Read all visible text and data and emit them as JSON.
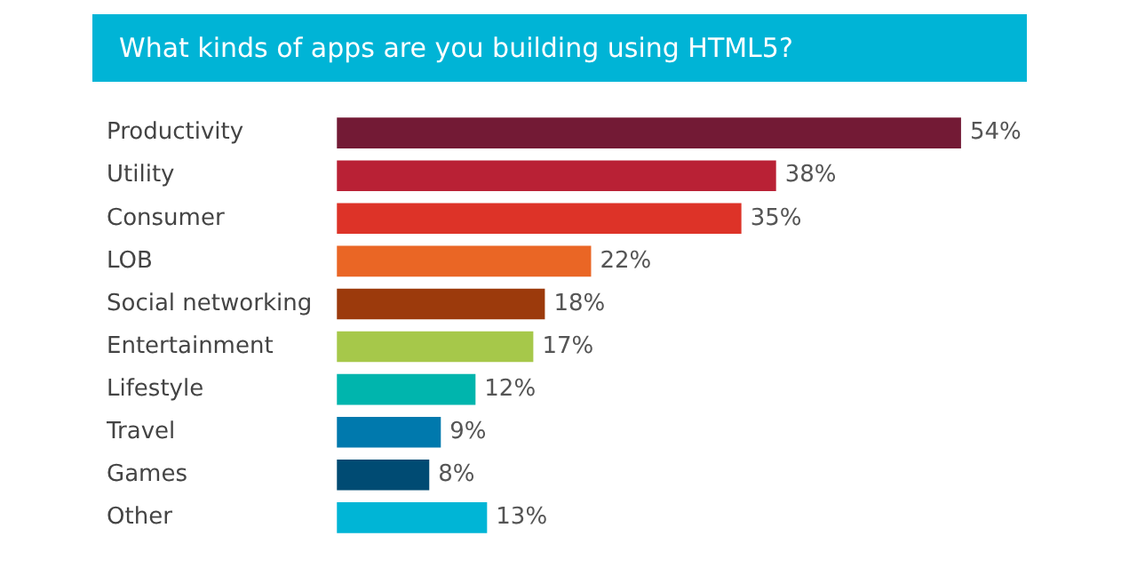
{
  "chart_data": {
    "type": "bar",
    "orientation": "horizontal",
    "title": "What kinds of apps are you building using HTML5?",
    "categories": [
      "Productivity",
      "Utility",
      "Consumer",
      "LOB",
      "Social networking",
      "Entertainment",
      "Lifestyle",
      "Travel",
      "Games",
      "Other"
    ],
    "values": [
      54,
      38,
      35,
      22,
      18,
      17,
      12,
      9,
      8,
      13
    ],
    "colors": [
      "#731a35",
      "#b92135",
      "#dd3328",
      "#ea6625",
      "#9c3a0c",
      "#a6c84a",
      "#00b5ad",
      "#0079ad",
      "#004b73",
      "#00b5d6"
    ],
    "value_labels": [
      "54%",
      "38%",
      "35%",
      "22%",
      "18%",
      "17%",
      "12%",
      "9%",
      "8%",
      "13%"
    ],
    "legend": false
  }
}
